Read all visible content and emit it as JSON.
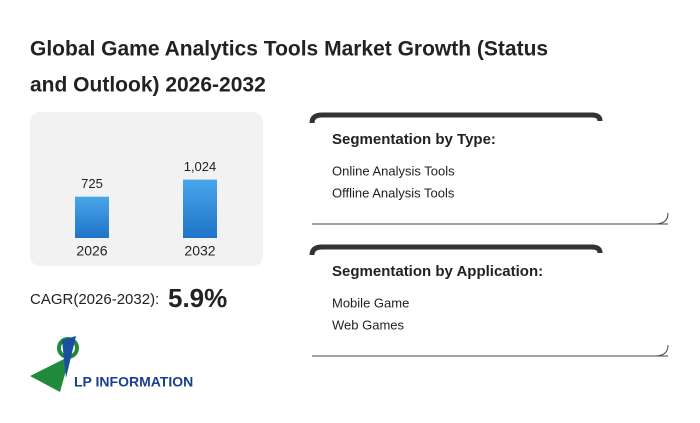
{
  "chart_data": {
    "type": "bar",
    "title": [
      "Global Game Analytics Tools Market Growth (Status",
      "and Outlook) 2026-2032"
    ],
    "categories": [
      "2026",
      "2032"
    ],
    "values": [
      725,
      1024
    ],
    "value_labels": [
      "725",
      "1,024"
    ],
    "color": "#1f7fd4"
  },
  "cagr": {
    "label": "CAGR(2026-2032):",
    "value": "5.9%"
  },
  "logo": "LP INFORMATION",
  "segments": [
    {
      "title": "Segmentation by Type:",
      "items": [
        "Online Analysis Tools",
        "Offline Analysis Tools"
      ]
    },
    {
      "title": "Segmentation by Application:",
      "items": [
        "Mobile Game",
        "Web Games"
      ]
    }
  ]
}
